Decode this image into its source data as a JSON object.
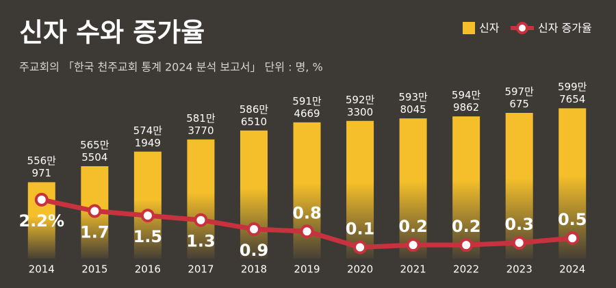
{
  "chart_data": {
    "type": "bar-line",
    "title": "신자 수와 증가율",
    "subtitle": "주교회의 「한국 천주교회 통계 2024 분석 보고서」 단위 : 명, %",
    "categories": [
      "2014",
      "2015",
      "2016",
      "2017",
      "2018",
      "2019",
      "2020",
      "2021",
      "2022",
      "2023",
      "2024"
    ],
    "ylim": [
      5110000,
      6100000
    ],
    "y2lim": [
      -0.4,
      7
    ],
    "legend": "top-right",
    "series": [
      {
        "name": "신자",
        "type": "bar",
        "color": "#f4bf2a",
        "values": [
          5560971,
          5655504,
          5741949,
          5813770,
          5866510,
          5914669,
          5923300,
          5938045,
          5949862,
          5970675,
          5997654
        ],
        "value_labels": [
          "556만\n971",
          "565만\n5504",
          "574만\n1949",
          "581만\n3770",
          "586만\n6510",
          "591만\n4669",
          "592만\n3300",
          "593만\n8045",
          "594만\n9862",
          "597만\n675",
          "599만\n7654"
        ]
      },
      {
        "name": "신자 증가율",
        "type": "line",
        "color": "#c8323f",
        "axis": "y2",
        "values": [
          2.2,
          1.7,
          1.5,
          1.3,
          0.9,
          0.8,
          0.1,
          0.2,
          0.2,
          0.3,
          0.5
        ],
        "value_labels": [
          "2.2%",
          "1.7",
          "1.5",
          "1.3",
          "0.9",
          "0.8",
          "0.1",
          "0.2",
          "0.2",
          "0.3",
          "0.5"
        ]
      }
    ]
  }
}
